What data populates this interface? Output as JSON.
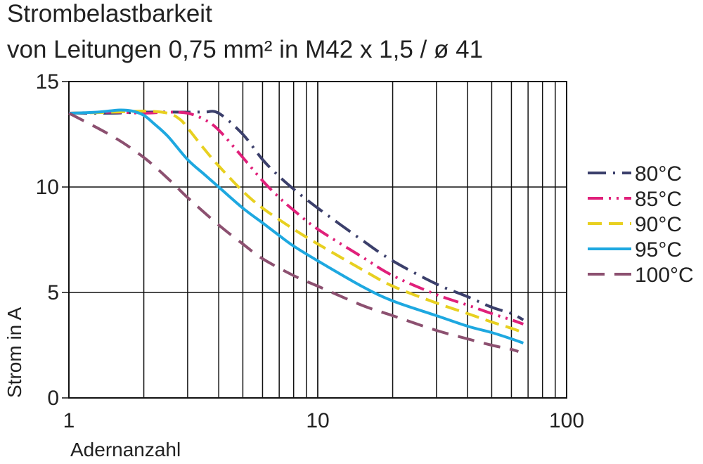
{
  "chart_data": {
    "type": "line",
    "title": "Strombelastbarkeit",
    "subtitle": "von Leitungen 0,75 mm² in M42 x 1,5 / ø 41",
    "xlabel": "Adernanzahl",
    "ylabel": "Strom in A",
    "x_scale": "log",
    "xlim": [
      1,
      100
    ],
    "ylim": [
      0,
      15
    ],
    "x_ticks": [
      "1",
      "10",
      "100"
    ],
    "y_ticks": [
      "0",
      "5",
      "10",
      "15"
    ],
    "grid": true,
    "legend_position": "right",
    "series": [
      {
        "name": "80°C",
        "color": "#3b3f6b",
        "dash": "dash-dot",
        "x": [
          1,
          1.5,
          2,
          3,
          3.5,
          4,
          5,
          6,
          7,
          8,
          10,
          15,
          20,
          30,
          40,
          50,
          60,
          67
        ],
        "y": [
          13.5,
          13.5,
          13.55,
          13.55,
          13.55,
          13.5,
          12.5,
          11.3,
          10.5,
          9.9,
          9.0,
          7.5,
          6.5,
          5.4,
          4.8,
          4.3,
          4.0,
          3.7
        ]
      },
      {
        "name": "85°C",
        "color": "#e0207a",
        "dash": "dash-dot-dot",
        "x": [
          1,
          1.5,
          2,
          2.5,
          3,
          3.5,
          4,
          5,
          6,
          7,
          8,
          10,
          15,
          20,
          30,
          40,
          50,
          60,
          67
        ],
        "y": [
          13.5,
          13.55,
          13.5,
          13.55,
          13.5,
          13.2,
          12.7,
          11.4,
          10.3,
          9.5,
          8.9,
          8.0,
          6.7,
          5.8,
          4.9,
          4.4,
          4.0,
          3.7,
          3.5
        ]
      },
      {
        "name": "90°C",
        "color": "#e8d020",
        "dash": "dash",
        "x": [
          1,
          1.5,
          2,
          2.5,
          2.8,
          3,
          3.5,
          4,
          5,
          6,
          8,
          10,
          15,
          20,
          30,
          40,
          50,
          60,
          67
        ],
        "y": [
          13.5,
          13.55,
          13.6,
          13.5,
          13.2,
          12.8,
          11.8,
          11.0,
          9.8,
          9.0,
          8.0,
          7.3,
          6.1,
          5.3,
          4.5,
          4.0,
          3.6,
          3.3,
          3.1
        ]
      },
      {
        "name": "95°C",
        "color": "#1ea8e0",
        "dash": "solid",
        "x": [
          1,
          1.3,
          1.6,
          1.8,
          2,
          2.2,
          2.5,
          3,
          3.5,
          4,
          5,
          6,
          7,
          8,
          10,
          15,
          20,
          30,
          40,
          50,
          60,
          67
        ],
        "y": [
          13.5,
          13.55,
          13.65,
          13.6,
          13.4,
          13.0,
          12.4,
          11.3,
          10.6,
          10.0,
          9.0,
          8.3,
          7.7,
          7.2,
          6.5,
          5.3,
          4.6,
          3.9,
          3.4,
          3.1,
          2.8,
          2.6
        ]
      },
      {
        "name": "100°C",
        "color": "#8c5070",
        "dash": "long-dash",
        "x": [
          1,
          1.5,
          2,
          2.5,
          3,
          4,
          5,
          6,
          8,
          10,
          15,
          20,
          30,
          40,
          50,
          60,
          64
        ],
        "y": [
          13.5,
          12.4,
          11.4,
          10.4,
          9.5,
          8.2,
          7.3,
          6.6,
          5.8,
          5.3,
          4.4,
          3.9,
          3.2,
          2.8,
          2.5,
          2.3,
          2.2
        ]
      }
    ]
  }
}
